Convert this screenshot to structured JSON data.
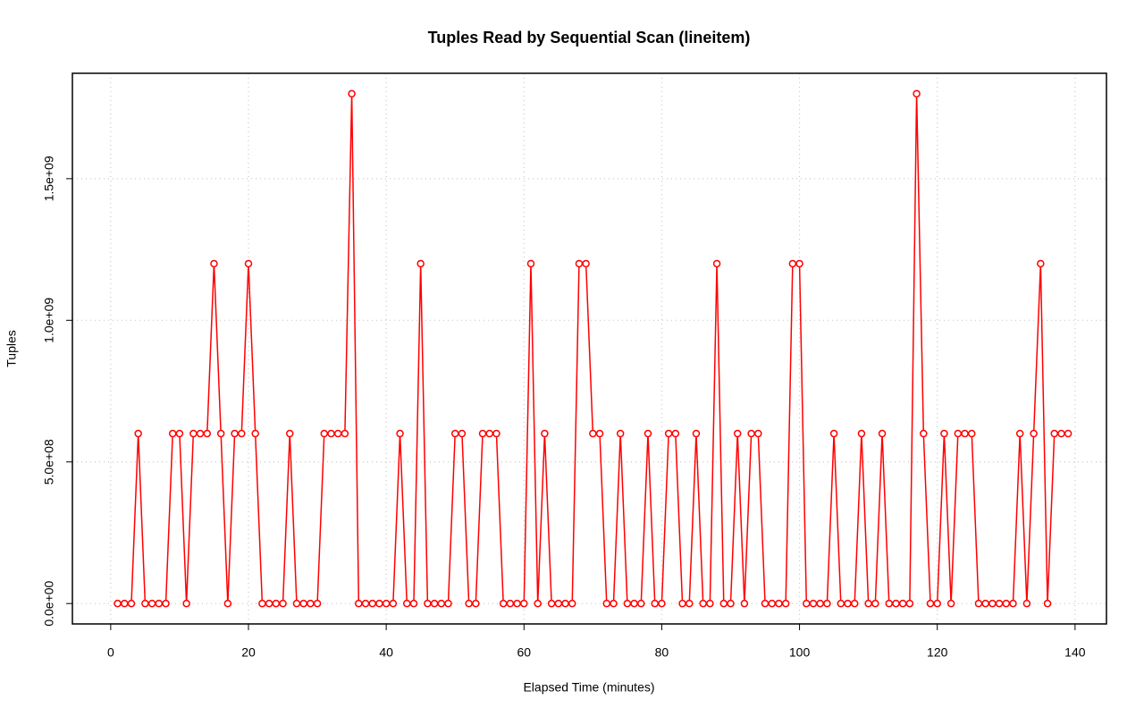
{
  "chart_data": {
    "type": "line",
    "title": "Tuples Read by Sequential Scan (lineitem)",
    "x_label": "Elapsed Time (minutes)",
    "y_label": "Tuples",
    "x": [
      1,
      2,
      3,
      4,
      5,
      6,
      7,
      8,
      9,
      10,
      11,
      12,
      13,
      14,
      15,
      16,
      17,
      18,
      19,
      20,
      21,
      22,
      23,
      24,
      25,
      26,
      27,
      28,
      29,
      30,
      31,
      32,
      33,
      34,
      35,
      36,
      37,
      38,
      39,
      40,
      41,
      42,
      43,
      44,
      45,
      46,
      47,
      48,
      49,
      50,
      51,
      52,
      53,
      54,
      55,
      56,
      57,
      58,
      59,
      60,
      61,
      62,
      63,
      64,
      65,
      66,
      67,
      68,
      69,
      70,
      71,
      72,
      73,
      74,
      75,
      76,
      77,
      78,
      79,
      80,
      81,
      82,
      83,
      84,
      85,
      86,
      87,
      88,
      89,
      90,
      91,
      92,
      93,
      94,
      95,
      96,
      97,
      98,
      99,
      100,
      101,
      102,
      103,
      104,
      105,
      106,
      107,
      108,
      109,
      110,
      111,
      112,
      113,
      114,
      115,
      116,
      117,
      118,
      119,
      120,
      121,
      122,
      123,
      124,
      125,
      126,
      127,
      128,
      129,
      130,
      131,
      132,
      133,
      134,
      135,
      136,
      137,
      138,
      139
    ],
    "series": [
      {
        "name": "Tuples",
        "color": "#ff0000",
        "values": [
          0,
          0,
          0,
          600000000,
          0,
          0,
          0,
          0,
          600000000,
          600000000,
          0,
          600000000,
          600000000,
          600000000,
          1200000000,
          600000000,
          0,
          600000000,
          600000000,
          1200000000,
          600000000,
          0,
          0,
          0,
          0,
          600000000,
          0,
          0,
          0,
          0,
          600000000,
          600000000,
          600000000,
          600000000,
          1800000000,
          0,
          0,
          0,
          0,
          0,
          0,
          600000000,
          0,
          0,
          1200000000,
          0,
          0,
          0,
          0,
          600000000,
          600000000,
          0,
          0,
          600000000,
          600000000,
          600000000,
          0,
          0,
          0,
          0,
          1200000000,
          0,
          600000000,
          0,
          0,
          0,
          0,
          1200000000,
          1200000000,
          600000000,
          600000000,
          0,
          0,
          600000000,
          0,
          0,
          0,
          600000000,
          0,
          0,
          600000000,
          600000000,
          0,
          0,
          600000000,
          0,
          0,
          1200000000,
          0,
          0,
          600000000,
          0,
          600000000,
          600000000,
          0,
          0,
          0,
          0,
          1200000000,
          1200000000,
          0,
          0,
          0,
          0,
          600000000,
          0,
          0,
          0,
          600000000,
          0,
          0,
          600000000,
          0,
          0,
          0,
          0,
          1800000000,
          600000000,
          0,
          0,
          600000000,
          0,
          600000000,
          600000000,
          600000000,
          0,
          0,
          0,
          0,
          0,
          0,
          600000000,
          0,
          600000000,
          1200000000,
          0,
          600000000,
          600000000,
          600000000
        ]
      }
    ],
    "xlim": [
      -5.56,
      144.56
    ],
    "ylim": [
      -72000000,
      1872000000
    ],
    "xticks": [
      0,
      20,
      40,
      60,
      80,
      100,
      120,
      140
    ],
    "yticks": [
      {
        "value": 0,
        "label": "0.0e+00"
      },
      {
        "value": 500000000,
        "label": "5.0e+08"
      },
      {
        "value": 1000000000,
        "label": "1.0e+09"
      },
      {
        "value": 1500000000,
        "label": "1.5e+09"
      }
    ],
    "grid": true
  }
}
